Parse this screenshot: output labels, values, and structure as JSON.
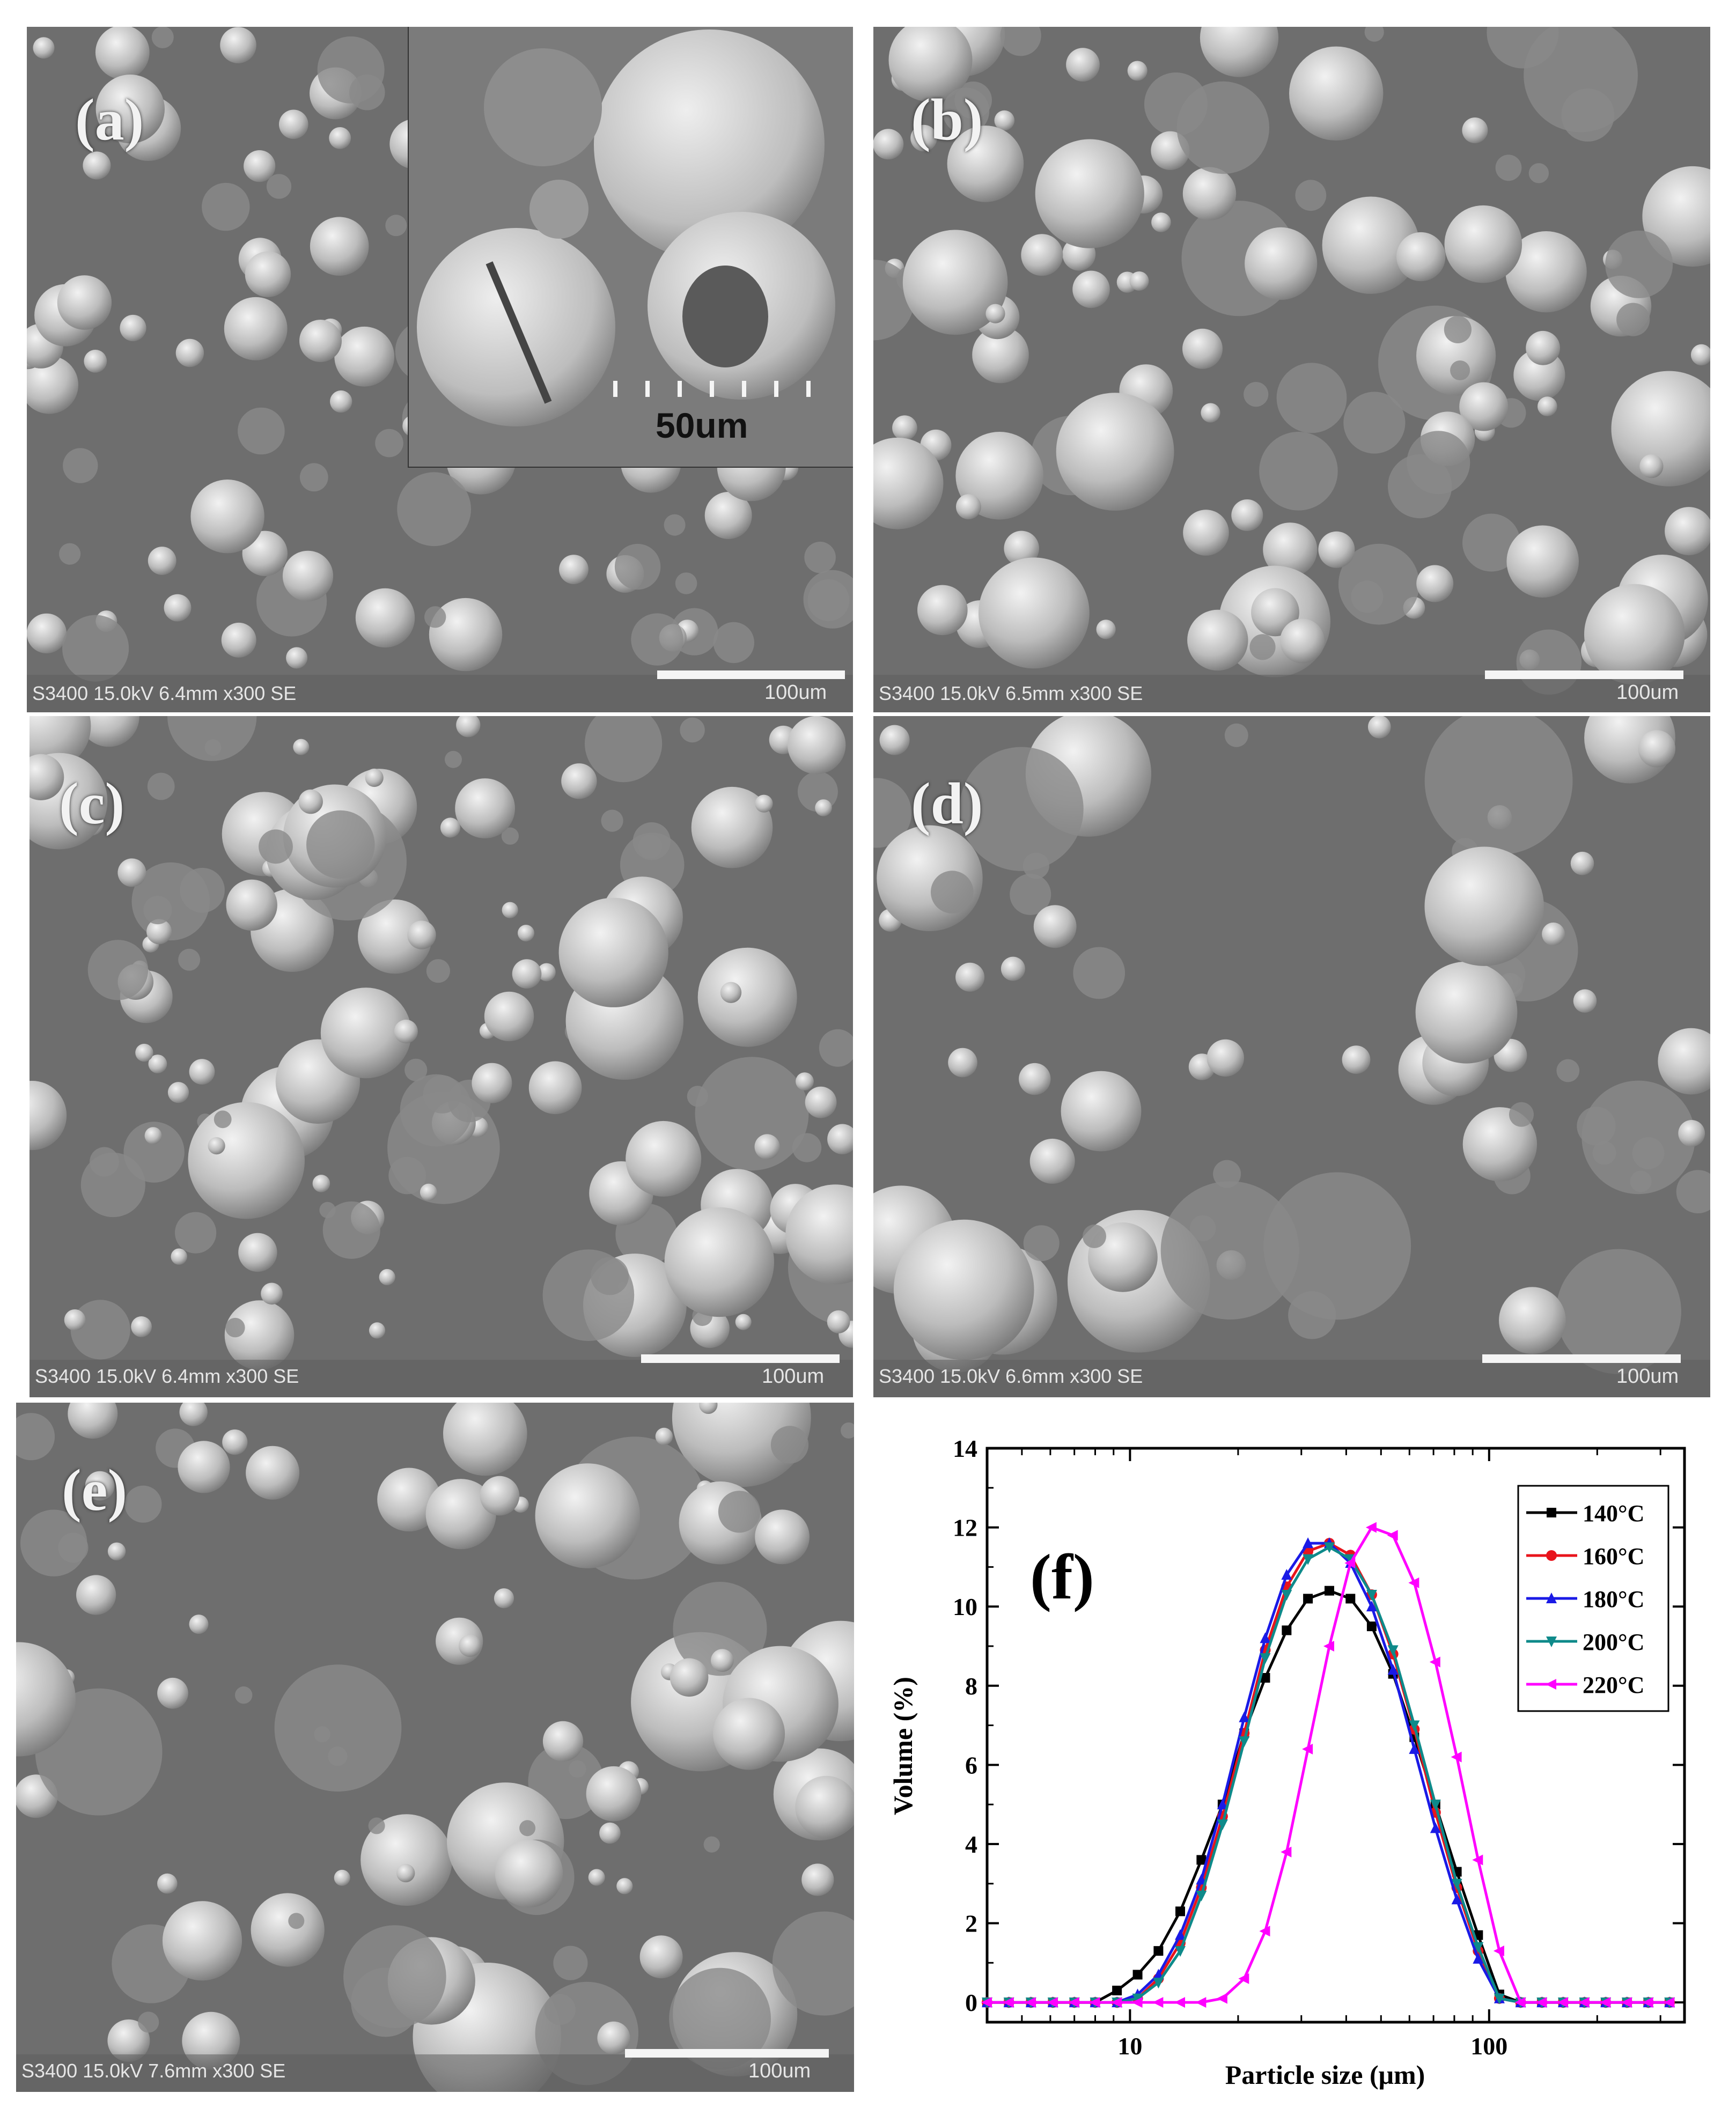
{
  "panels": [
    {
      "id": "a",
      "label": "(a)",
      "info": "S3400 15.0kV 6.4mm x300 SE",
      "scale": "100um",
      "inset_scale": "50um"
    },
    {
      "id": "b",
      "label": "(b)",
      "info": "S3400 15.0kV 6.5mm x300 SE",
      "scale": "100um"
    },
    {
      "id": "c",
      "label": "(c)",
      "info": "S3400 15.0kV 6.4mm x300 SE",
      "scale": "100um"
    },
    {
      "id": "d",
      "label": "(d)",
      "info": "S3400 15.0kV 6.6mm x300 SE",
      "scale": "100um"
    },
    {
      "id": "e",
      "label": "(e)",
      "info": "S3400 15.0kV 7.6mm x300 SE",
      "scale": "100um"
    }
  ],
  "chart_data": {
    "type": "line",
    "panel_label": "(f)",
    "title": "",
    "xlabel": "Particle size (μm)",
    "ylabel": "Volume (%)",
    "xscale": "log",
    "xlim": [
      4,
      350
    ],
    "ylim": [
      -0.5,
      14
    ],
    "xticks": [
      10,
      100
    ],
    "yticks": [
      0,
      2,
      4,
      6,
      8,
      10,
      12,
      14
    ],
    "legend_position": "top-right",
    "series": [
      {
        "name": "140°C",
        "color": "#000000",
        "marker": "square",
        "peak_x": 33,
        "peak_y": 10.4,
        "sigma": 0.36,
        "x": [
          4.0,
          4.6,
          5.3,
          6.1,
          7.0,
          8.0,
          9.2,
          10.5,
          12.0,
          13.8,
          15.8,
          18.1,
          20.8,
          23.8,
          27.3,
          31.3,
          35.9,
          41.1,
          47.1,
          54.0,
          61.9,
          70.9,
          81.3,
          93.2,
          106.8,
          122.4,
          140.3,
          160.8,
          184.3,
          211.2,
          242.1,
          277.5,
          318.1
        ],
        "y": [
          0,
          0,
          0,
          0,
          0,
          0,
          0.3,
          0.7,
          1.3,
          2.3,
          3.6,
          5.0,
          6.8,
          8.2,
          9.4,
          10.2,
          10.4,
          10.2,
          9.5,
          8.3,
          6.7,
          5.0,
          3.3,
          1.7,
          0.2,
          0,
          0,
          0,
          0,
          0,
          0,
          0,
          0
        ]
      },
      {
        "name": "160°C",
        "color": "#e8141c",
        "marker": "circle",
        "peak_x": 35.5,
        "peak_y": 11.6,
        "sigma": 0.33,
        "x": [
          4.0,
          4.6,
          5.3,
          6.1,
          7.0,
          8.0,
          9.2,
          10.5,
          12.0,
          13.8,
          15.8,
          18.1,
          20.8,
          23.8,
          27.3,
          31.3,
          35.9,
          41.1,
          47.1,
          54.0,
          61.9,
          70.9,
          81.3,
          93.2,
          106.8,
          122.4,
          140.3,
          160.8,
          184.3,
          211.2,
          242.1,
          277.5,
          318.1
        ],
        "y": [
          0,
          0,
          0,
          0,
          0,
          0,
          0,
          0.1,
          0.6,
          1.5,
          2.9,
          4.7,
          6.8,
          8.9,
          10.5,
          11.4,
          11.6,
          11.3,
          10.3,
          8.8,
          6.9,
          4.8,
          2.9,
          1.3,
          0.1,
          0,
          0,
          0,
          0,
          0,
          0,
          0,
          0
        ]
      },
      {
        "name": "180°C",
        "color": "#1a1ae6",
        "marker": "triangle-up",
        "peak_x": 34.5,
        "peak_y": 11.7,
        "sigma": 0.33,
        "x": [
          4.0,
          4.6,
          5.3,
          6.1,
          7.0,
          8.0,
          9.2,
          10.5,
          12.0,
          13.8,
          15.8,
          18.1,
          20.8,
          23.8,
          27.3,
          31.3,
          35.9,
          41.1,
          47.1,
          54.0,
          61.9,
          70.9,
          81.3,
          93.2,
          106.8,
          122.4,
          140.3,
          160.8,
          184.3,
          211.2,
          242.1,
          277.5,
          318.1
        ],
        "y": [
          0,
          0,
          0,
          0,
          0,
          0,
          0,
          0.2,
          0.7,
          1.7,
          3.1,
          5.0,
          7.2,
          9.2,
          10.8,
          11.6,
          11.6,
          11.1,
          10.0,
          8.4,
          6.4,
          4.4,
          2.6,
          1.1,
          0.1,
          0,
          0,
          0,
          0,
          0,
          0,
          0,
          0
        ]
      },
      {
        "name": "200°C",
        "color": "#0e8a8a",
        "marker": "triangle-down",
        "peak_x": 36,
        "peak_y": 11.5,
        "sigma": 0.33,
        "x": [
          4.0,
          4.6,
          5.3,
          6.1,
          7.0,
          8.0,
          9.2,
          10.5,
          12.0,
          13.8,
          15.8,
          18.1,
          20.8,
          23.8,
          27.3,
          31.3,
          35.9,
          41.1,
          47.1,
          54.0,
          61.9,
          70.9,
          81.3,
          93.2,
          106.8,
          122.4,
          140.3,
          160.8,
          184.3,
          211.2,
          242.1,
          277.5,
          318.1
        ],
        "y": [
          0,
          0,
          0,
          0,
          0,
          0,
          0,
          0.1,
          0.5,
          1.3,
          2.7,
          4.5,
          6.6,
          8.7,
          10.3,
          11.2,
          11.5,
          11.2,
          10.3,
          8.9,
          7.0,
          5.0,
          3.0,
          1.4,
          0.1,
          0,
          0,
          0,
          0,
          0,
          0,
          0,
          0
        ]
      },
      {
        "name": "220°C",
        "color": "#ff00ff",
        "marker": "triangle-left",
        "peak_x": 47,
        "peak_y": 12.0,
        "sigma": 0.31,
        "x": [
          4.0,
          4.6,
          5.3,
          6.1,
          7.0,
          8.0,
          9.2,
          10.5,
          12.0,
          13.8,
          15.8,
          18.1,
          20.8,
          23.8,
          27.3,
          31.3,
          35.9,
          41.1,
          47.1,
          54.0,
          61.9,
          70.9,
          81.3,
          93.2,
          106.8,
          122.4,
          140.3,
          160.8,
          184.3,
          211.2,
          242.1,
          277.5,
          318.1
        ],
        "y": [
          0,
          0,
          0,
          0,
          0,
          0,
          0,
          0,
          0,
          0,
          0,
          0.1,
          0.6,
          1.8,
          3.8,
          6.4,
          9.0,
          11.1,
          12.0,
          11.8,
          10.6,
          8.6,
          6.2,
          3.6,
          1.3,
          0,
          0,
          0,
          0,
          0,
          0,
          0,
          0
        ]
      }
    ]
  }
}
